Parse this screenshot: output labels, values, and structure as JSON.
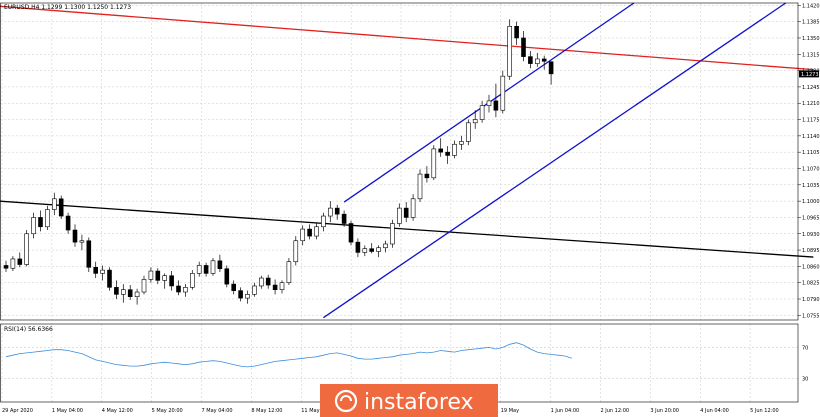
{
  "header": {
    "symbol_line": "EURUSD,H4  1.1299 1.1300 1.1250 1.1273",
    "rsi_label": "RSI(14) 56.6366"
  },
  "watermark": {
    "text": "instaforex"
  },
  "colors": {
    "bull_candle": "#ffffff",
    "bear_candle": "#000000",
    "red_trendline": "#e0211d",
    "black_trendline": "#000000",
    "channel": "#1010cc",
    "rsi_line": "#3c8dde",
    "watermark_bg": "#ef6a3f",
    "price_badge": "#000000"
  },
  "chart_data": [
    {
      "type": "candlestick",
      "symbol": "EURUSD",
      "timeframe": "H4",
      "ylim": [
        1.0745,
        1.1425
      ],
      "y_ticks": [
        "1.1420",
        "1.1385",
        "1.1350",
        "1.1315",
        "1.1280",
        "1.1245",
        "1.1210",
        "1.1175",
        "1.1140",
        "1.1105",
        "1.1070",
        "1.1035",
        "1.1000",
        "1.0965",
        "1.0930",
        "1.0895",
        "1.0860",
        "1.0825",
        "1.0790",
        "1.0755"
      ],
      "current_price": "1.1273",
      "x_ticks": [
        "29 Apr 2020",
        "1 May 04:00",
        "4 May 12:00",
        "5 May 20:00",
        "7 May 04:00",
        "8 May 12:00",
        "11 May 20:00",
        "13 May 04:00",
        "14 May 12:00",
        "15 May 20:00",
        "19 May",
        "1 Jun 04:00",
        "2 Jun 12:00",
        "3 Jun 20:00",
        "4 Jun 04:00",
        "5 Jun 12:00"
      ],
      "candles": [
        {
          "o": 1.0862,
          "h": 1.0872,
          "l": 1.0848,
          "c": 1.0856
        },
        {
          "o": 1.0856,
          "h": 1.0882,
          "l": 1.085,
          "c": 1.0876
        },
        {
          "o": 1.0876,
          "h": 1.089,
          "l": 1.0858,
          "c": 1.0864
        },
        {
          "o": 1.0864,
          "h": 1.0938,
          "l": 1.086,
          "c": 1.093
        },
        {
          "o": 1.093,
          "h": 1.0975,
          "l": 1.092,
          "c": 1.0965
        },
        {
          "o": 1.0965,
          "h": 1.098,
          "l": 1.0935,
          "c": 1.0945
        },
        {
          "o": 1.0945,
          "h": 1.099,
          "l": 1.0938,
          "c": 1.0982
        },
        {
          "o": 1.0982,
          "h": 1.1018,
          "l": 1.097,
          "c": 1.1005
        },
        {
          "o": 1.1005,
          "h": 1.1012,
          "l": 1.0962,
          "c": 1.0968
        },
        {
          "o": 1.0968,
          "h": 1.0975,
          "l": 1.093,
          "c": 1.0938
        },
        {
          "o": 1.0938,
          "h": 1.095,
          "l": 1.0902,
          "c": 1.0912
        },
        {
          "o": 1.0912,
          "h": 1.0928,
          "l": 1.0895,
          "c": 1.0915
        },
        {
          "o": 1.0915,
          "h": 1.0922,
          "l": 1.0848,
          "c": 1.0858
        },
        {
          "o": 1.0858,
          "h": 1.087,
          "l": 1.0835,
          "c": 1.0845
        },
        {
          "o": 1.0845,
          "h": 1.0862,
          "l": 1.083,
          "c": 1.0852
        },
        {
          "o": 1.0852,
          "h": 1.0858,
          "l": 1.0808,
          "c": 1.0815
        },
        {
          "o": 1.0815,
          "h": 1.083,
          "l": 1.079,
          "c": 1.08
        },
        {
          "o": 1.08,
          "h": 1.0822,
          "l": 1.0782,
          "c": 1.081
        },
        {
          "o": 1.081,
          "h": 1.082,
          "l": 1.0788,
          "c": 1.0795
        },
        {
          "o": 1.0795,
          "h": 1.0812,
          "l": 1.0778,
          "c": 1.0805
        },
        {
          "o": 1.0805,
          "h": 1.084,
          "l": 1.08,
          "c": 1.0832
        },
        {
          "o": 1.0832,
          "h": 1.0858,
          "l": 1.0825,
          "c": 1.085
        },
        {
          "o": 1.085,
          "h": 1.0856,
          "l": 1.0822,
          "c": 1.083
        },
        {
          "o": 1.083,
          "h": 1.0845,
          "l": 1.0812,
          "c": 1.084
        },
        {
          "o": 1.084,
          "h": 1.085,
          "l": 1.0808,
          "c": 1.0818
        },
        {
          "o": 1.0818,
          "h": 1.083,
          "l": 1.0798,
          "c": 1.0805
        },
        {
          "o": 1.0805,
          "h": 1.0822,
          "l": 1.0795,
          "c": 1.0815
        },
        {
          "o": 1.0815,
          "h": 1.0852,
          "l": 1.081,
          "c": 1.0845
        },
        {
          "o": 1.0845,
          "h": 1.087,
          "l": 1.0838,
          "c": 1.0862
        },
        {
          "o": 1.0862,
          "h": 1.0868,
          "l": 1.0838,
          "c": 1.0845
        },
        {
          "o": 1.0845,
          "h": 1.0878,
          "l": 1.084,
          "c": 1.0872
        },
        {
          "o": 1.0872,
          "h": 1.0885,
          "l": 1.0848,
          "c": 1.0855
        },
        {
          "o": 1.0855,
          "h": 1.0862,
          "l": 1.0815,
          "c": 1.0822
        },
        {
          "o": 1.0822,
          "h": 1.083,
          "l": 1.08,
          "c": 1.0808
        },
        {
          "o": 1.0808,
          "h": 1.0815,
          "l": 1.0785,
          "c": 1.0792
        },
        {
          "o": 1.0792,
          "h": 1.0808,
          "l": 1.078,
          "c": 1.08
        },
        {
          "o": 1.08,
          "h": 1.0825,
          "l": 1.0795,
          "c": 1.0818
        },
        {
          "o": 1.0818,
          "h": 1.084,
          "l": 1.0812,
          "c": 1.0835
        },
        {
          "o": 1.0835,
          "h": 1.0842,
          "l": 1.0812,
          "c": 1.082
        },
        {
          "o": 1.082,
          "h": 1.0832,
          "l": 1.08,
          "c": 1.081
        },
        {
          "o": 1.081,
          "h": 1.083,
          "l": 1.0802,
          "c": 1.0825
        },
        {
          "o": 1.0825,
          "h": 1.0878,
          "l": 1.082,
          "c": 1.087
        },
        {
          "o": 1.087,
          "h": 1.0925,
          "l": 1.0862,
          "c": 1.0915
        },
        {
          "o": 1.0915,
          "h": 1.0948,
          "l": 1.0905,
          "c": 1.094
        },
        {
          "o": 1.094,
          "h": 1.095,
          "l": 1.0918,
          "c": 1.0925
        },
        {
          "o": 1.0925,
          "h": 1.0952,
          "l": 1.0918,
          "c": 1.0945
        },
        {
          "o": 1.0945,
          "h": 1.0975,
          "l": 1.0935,
          "c": 1.0968
        },
        {
          "o": 1.0968,
          "h": 1.1,
          "l": 1.0955,
          "c": 1.0985
        },
        {
          "o": 1.0985,
          "h": 1.0992,
          "l": 1.096,
          "c": 1.0972
        },
        {
          "o": 1.0972,
          "h": 1.098,
          "l": 1.0945,
          "c": 1.0952
        },
        {
          "o": 1.0952,
          "h": 1.0958,
          "l": 1.0905,
          "c": 1.0912
        },
        {
          "o": 1.0912,
          "h": 1.092,
          "l": 1.088,
          "c": 1.089
        },
        {
          "o": 1.089,
          "h": 1.0905,
          "l": 1.0882,
          "c": 1.0898
        },
        {
          "o": 1.0898,
          "h": 1.091,
          "l": 1.0888,
          "c": 1.0892
        },
        {
          "o": 1.0892,
          "h": 1.0905,
          "l": 1.088,
          "c": 1.09
        },
        {
          "o": 1.09,
          "h": 1.0915,
          "l": 1.089,
          "c": 1.0908
        },
        {
          "o": 1.0908,
          "h": 1.096,
          "l": 1.09,
          "c": 1.0952
        },
        {
          "o": 1.0952,
          "h": 1.0995,
          "l": 1.0945,
          "c": 1.0985
        },
        {
          "o": 1.0985,
          "h": 1.0998,
          "l": 1.0955,
          "c": 1.0965
        },
        {
          "o": 1.0965,
          "h": 1.1015,
          "l": 1.0958,
          "c": 1.1005
        },
        {
          "o": 1.1005,
          "h": 1.1068,
          "l": 1.0998,
          "c": 1.1058
        },
        {
          "o": 1.1058,
          "h": 1.1075,
          "l": 1.104,
          "c": 1.105
        },
        {
          "o": 1.105,
          "h": 1.112,
          "l": 1.1045,
          "c": 1.1112
        },
        {
          "o": 1.1112,
          "h": 1.1135,
          "l": 1.1095,
          "c": 1.1105
        },
        {
          "o": 1.1105,
          "h": 1.1118,
          "l": 1.108,
          "c": 1.1098
        },
        {
          "o": 1.1098,
          "h": 1.113,
          "l": 1.1092,
          "c": 1.1122
        },
        {
          "o": 1.1122,
          "h": 1.114,
          "l": 1.111,
          "c": 1.1128
        },
        {
          "o": 1.1128,
          "h": 1.1175,
          "l": 1.112,
          "c": 1.1168
        },
        {
          "o": 1.1168,
          "h": 1.1195,
          "l": 1.1155,
          "c": 1.1175
        },
        {
          "o": 1.1175,
          "h": 1.1215,
          "l": 1.1168,
          "c": 1.1205
        },
        {
          "o": 1.1205,
          "h": 1.1228,
          "l": 1.119,
          "c": 1.1215
        },
        {
          "o": 1.1215,
          "h": 1.1252,
          "l": 1.118,
          "c": 1.1195
        },
        {
          "o": 1.1195,
          "h": 1.128,
          "l": 1.1188,
          "c": 1.1268
        },
        {
          "o": 1.1268,
          "h": 1.139,
          "l": 1.126,
          "c": 1.1375
        },
        {
          "o": 1.1375,
          "h": 1.1385,
          "l": 1.1335,
          "c": 1.135
        },
        {
          "o": 1.135,
          "h": 1.1365,
          "l": 1.13,
          "c": 1.131
        },
        {
          "o": 1.131,
          "h": 1.1322,
          "l": 1.1285,
          "c": 1.1295
        },
        {
          "o": 1.1295,
          "h": 1.1318,
          "l": 1.1288,
          "c": 1.1305
        },
        {
          "o": 1.1305,
          "h": 1.1312,
          "l": 1.1282,
          "c": 1.13
        },
        {
          "o": 1.1299,
          "h": 1.13,
          "l": 1.125,
          "c": 1.1273
        }
      ],
      "trendlines": [
        {
          "name": "red-resistance",
          "color": "red",
          "from": {
            "bar": -1,
            "price": 1.1418
          },
          "to": {
            "bar": 117,
            "price": 1.1282
          }
        },
        {
          "name": "black-support",
          "color": "black",
          "from": {
            "bar": -1,
            "price": 1.1
          },
          "to": {
            "bar": 117,
            "price": 1.088
          }
        },
        {
          "name": "channel-upper",
          "color": "blue",
          "from": {
            "bar": 49,
            "price": 1.0998
          },
          "to": {
            "bar": 91,
            "price": 1.1425
          }
        },
        {
          "name": "channel-lower",
          "color": "blue",
          "from": {
            "bar": 46,
            "price": 1.075
          },
          "to": {
            "bar": 113,
            "price": 1.1425
          }
        }
      ]
    },
    {
      "type": "line",
      "name": "RSI(14)",
      "ylim": [
        0,
        100
      ],
      "y_ticks": [
        "70",
        "30"
      ],
      "values": [
        58,
        60,
        62,
        63,
        64,
        65,
        66,
        67,
        67,
        66,
        64,
        62,
        58,
        54,
        52,
        50,
        48,
        47,
        46,
        46,
        47,
        49,
        50,
        51,
        50,
        49,
        48,
        49,
        51,
        52,
        53,
        52,
        50,
        48,
        46,
        45,
        46,
        48,
        50,
        52,
        53,
        54,
        55,
        56,
        57,
        58,
        60,
        62,
        63,
        61,
        59,
        56,
        55,
        55,
        56,
        57,
        58,
        60,
        61,
        62,
        64,
        63,
        64,
        66,
        65,
        64,
        66,
        67,
        68,
        69,
        70,
        68,
        70,
        74,
        76,
        73,
        68,
        64,
        62,
        61,
        60,
        59,
        56
      ]
    }
  ]
}
